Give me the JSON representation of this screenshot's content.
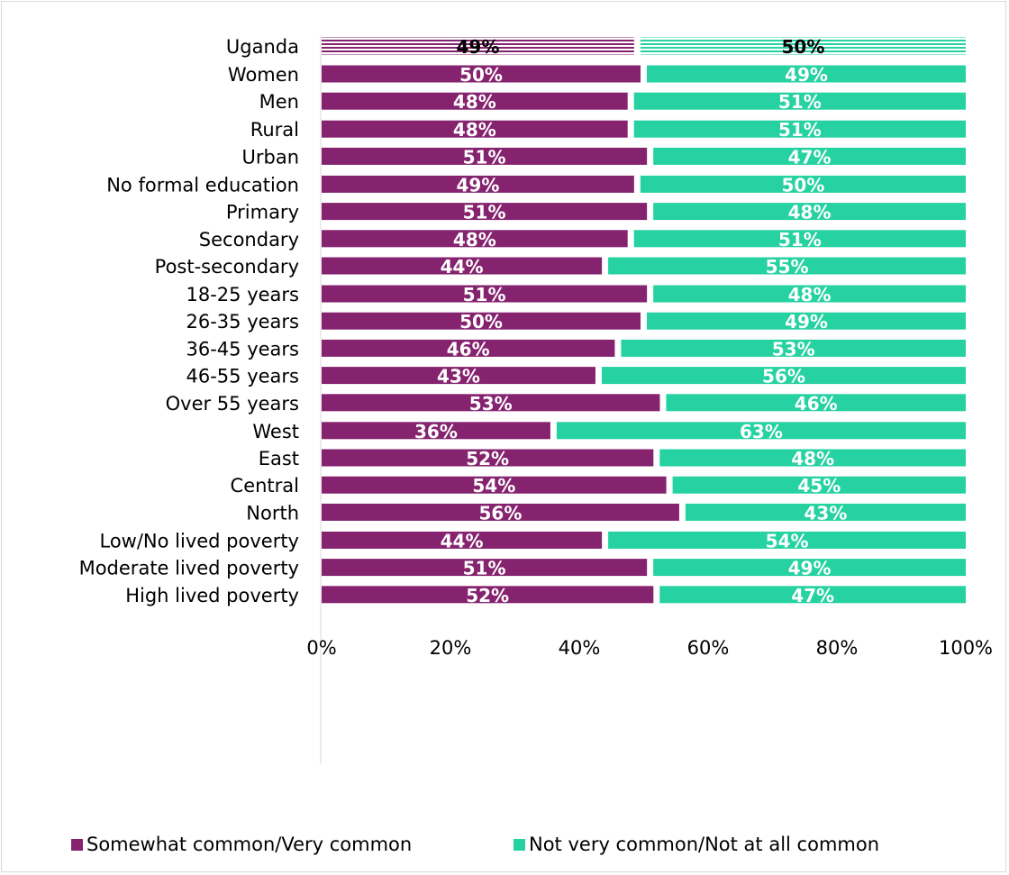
{
  "chart_data": {
    "type": "bar",
    "orientation": "horizontal",
    "stacked": true,
    "categories": [
      "Uganda",
      "Women",
      "Men",
      "Rural",
      "Urban",
      "No formal education",
      "Primary",
      "Secondary",
      "Post-secondary",
      "18-25 years",
      "26-35 years",
      "36-45 years",
      "46-55 years",
      "Over 55 years",
      "West",
      "East",
      "Central",
      "North",
      "Low/No lived poverty",
      "Moderate lived poverty",
      "High lived poverty"
    ],
    "series": [
      {
        "name": "Somewhat common/Very common",
        "color": "#85236f",
        "values": [
          49,
          50,
          48,
          48,
          51,
          49,
          51,
          48,
          44,
          51,
          50,
          46,
          43,
          53,
          36,
          52,
          54,
          56,
          44,
          51,
          52
        ],
        "labels": [
          "49%",
          "50%",
          "48%",
          "48%",
          "51%",
          "49%",
          "51%",
          "48%",
          "44%",
          "51%",
          "50%",
          "46%",
          "43%",
          "53%",
          "36%",
          "52%",
          "54%",
          "56%",
          "44%",
          "51%",
          "52%"
        ]
      },
      {
        "name": "Not very common/Not at all common",
        "color": "#26d1a2",
        "values": [
          50,
          49,
          51,
          51,
          47,
          50,
          48,
          51,
          55,
          48,
          49,
          53,
          56,
          46,
          63,
          48,
          45,
          43,
          54,
          49,
          47
        ],
        "labels": [
          "50%",
          "49%",
          "51%",
          "51%",
          "47%",
          "50%",
          "48%",
          "51%",
          "55%",
          "48%",
          "49%",
          "53%",
          "56%",
          "46%",
          "63%",
          "48%",
          "45%",
          "43%",
          "54%",
          "49%",
          "47%"
        ]
      }
    ],
    "groups": [
      [
        0
      ],
      [
        1,
        2
      ],
      [
        3,
        4
      ],
      [
        5,
        6,
        7,
        8
      ],
      [
        9,
        10,
        11,
        12,
        13
      ],
      [
        14,
        15,
        16,
        17
      ],
      [
        18,
        19,
        20
      ]
    ],
    "highlight_category": "Uganda",
    "xlim": [
      0,
      100
    ],
    "xticks": [
      "0%",
      "20%",
      "40%",
      "60%",
      "80%",
      "100%"
    ],
    "legend_position": "bottom",
    "grid": false
  }
}
